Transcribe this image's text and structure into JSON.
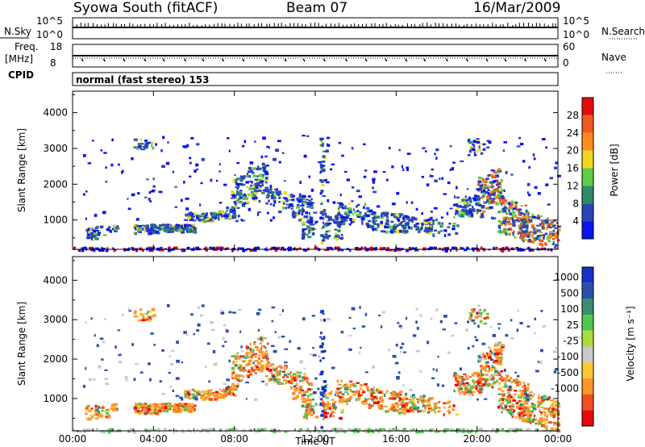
{
  "header": {
    "station": "Syowa South (fitACF)",
    "beam": "Beam 07",
    "date": "16/Mar/2009"
  },
  "top_panels": {
    "nsky_label": "N.Sky",
    "nsky_ticks": [
      "10^5",
      "10^0"
    ],
    "nsearch_label": "N.Search",
    "nsearch_ticks": [
      "10^5",
      "10^0"
    ],
    "freq_label": "Freq.",
    "freq_unit": "[MHz]",
    "freq_ticks": [
      "18",
      "8"
    ],
    "nave_label": "Nave",
    "nave_ticks": [
      "60",
      "0"
    ],
    "cpid_label": "CPID",
    "cpid_value": "normal (fast stereo) 153"
  },
  "colors": {
    "power_scale": [
      "#0a14f0",
      "#2a46b4",
      "#2e8a6a",
      "#5ccd48",
      "#f0d81e",
      "#ff8c1e",
      "#f05a1e",
      "#e60a0a"
    ],
    "velocity_scale": [
      "#e60a0a",
      "#f0501e",
      "#ff9628",
      "#ffc832",
      "#c8c8c8",
      "#aadc3c",
      "#50c850",
      "#3c8c6e",
      "#2a50aa",
      "#1432c8"
    ]
  },
  "chart_data": [
    {
      "type": "heatmap",
      "name": "power",
      "ylabel": "Slant Range [km]",
      "xlabel": "",
      "x_ticks": [
        "00:00",
        "04:00",
        "08:00",
        "12:00",
        "16:00",
        "20:00",
        "00:00"
      ],
      "y_ticks": [
        1000,
        2000,
        3000,
        4000
      ],
      "ylim": [
        180,
        4600
      ],
      "xlim_hours": [
        0,
        24
      ],
      "colorbar": {
        "label": "Power [dB]",
        "ticks": [
          4,
          8,
          12,
          16,
          20,
          24,
          28
        ]
      }
    },
    {
      "type": "heatmap",
      "name": "velocity",
      "ylabel": "Slant Range [km]",
      "xlabel": "Time UT",
      "x_ticks": [
        "00:00",
        "04:00",
        "08:00",
        "12:00",
        "16:00",
        "20:00",
        "00:00"
      ],
      "y_ticks": [
        1000,
        2000,
        3000,
        4000
      ],
      "ylim": [
        180,
        4600
      ],
      "xlim_hours": [
        0,
        24
      ],
      "colorbar": {
        "label": "Velocity [m s⁻¹]",
        "ticks": [
          1000,
          500,
          100,
          25,
          -25,
          -100,
          -500,
          -1000
        ]
      }
    }
  ]
}
